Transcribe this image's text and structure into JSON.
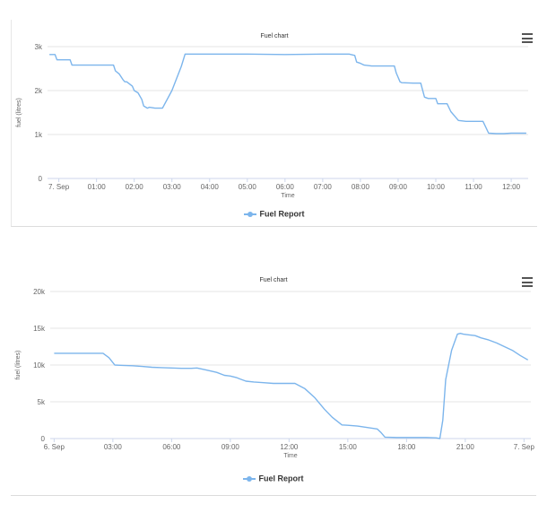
{
  "chart_data": [
    {
      "type": "line",
      "title": "Fuel chart",
      "xlabel": "Time",
      "ylabel": "fuel (litres)",
      "xlim": [
        -0.3,
        12.45
      ],
      "ylim": [
        0,
        3000
      ],
      "yticks": [
        0,
        1000,
        2000,
        3000
      ],
      "ytick_labels": [
        "0",
        "1k",
        "2k",
        "3k"
      ],
      "xticks": [
        0,
        1,
        2,
        3,
        4,
        5,
        6,
        7,
        8,
        9,
        10,
        11,
        12
      ],
      "xtick_labels": [
        "7. Sep",
        "01:00",
        "02:00",
        "03:00",
        "04:00",
        "05:00",
        "06:00",
        "07:00",
        "08:00",
        "09:00",
        "10:00",
        "11:00",
        "12:00"
      ],
      "grid": true,
      "legend": "bottom-center",
      "series": [
        {
          "name": "Fuel Report",
          "color": "#7cb5ec",
          "x": [
            -0.25,
            -0.1,
            -0.05,
            0.1,
            0.3,
            0.35,
            0.8,
            1.2,
            1.45,
            1.5,
            1.6,
            1.7,
            1.75,
            1.8,
            1.95,
            2.0,
            2.1,
            2.2,
            2.25,
            2.35,
            2.4,
            2.55,
            2.75,
            3.0,
            3.25,
            3.35,
            4.0,
            5.0,
            6.0,
            7.0,
            7.5,
            7.7,
            7.85,
            7.9,
            8.0,
            8.1,
            8.3,
            8.5,
            8.9,
            8.95,
            9.05,
            9.1,
            9.4,
            9.6,
            9.7,
            9.8,
            10.0,
            10.05,
            10.3,
            10.4,
            10.6,
            10.8,
            11.0,
            11.25,
            11.4,
            11.6,
            11.8,
            12.0,
            12.2,
            12.4
          ],
          "y": [
            2820,
            2820,
            2700,
            2700,
            2700,
            2580,
            2580,
            2580,
            2580,
            2450,
            2380,
            2250,
            2200,
            2200,
            2100,
            2000,
            1950,
            1800,
            1650,
            1600,
            1620,
            1600,
            1600,
            2000,
            2550,
            2830,
            2830,
            2830,
            2820,
            2830,
            2830,
            2830,
            2800,
            2650,
            2620,
            2580,
            2560,
            2560,
            2560,
            2400,
            2200,
            2180,
            2170,
            2170,
            1850,
            1820,
            1820,
            1700,
            1700,
            1520,
            1320,
            1300,
            1300,
            1300,
            1030,
            1020,
            1020,
            1030,
            1030,
            1030
          ]
        }
      ]
    },
    {
      "type": "line",
      "title": "Fuel chart",
      "xlabel": "Time",
      "ylabel": "fuel (litres)",
      "xlim": [
        -0.2,
        24.35
      ],
      "ylim": [
        0,
        20000
      ],
      "yticks": [
        0,
        5000,
        10000,
        15000,
        20000
      ],
      "ytick_labels": [
        "0",
        "5k",
        "10k",
        "15k",
        "20k"
      ],
      "xticks": [
        0,
        3,
        6,
        9,
        12,
        15,
        18,
        21,
        24
      ],
      "xtick_labels": [
        "6. Sep",
        "03:00",
        "06:00",
        "09:00",
        "12:00",
        "15:00",
        "18:00",
        "21:00",
        "7. Sep"
      ],
      "grid": true,
      "legend": "bottom-center",
      "series": [
        {
          "name": "Fuel Report",
          "color": "#7cb5ec",
          "x": [
            0.0,
            0.5,
            1.0,
            1.5,
            2.0,
            2.5,
            2.8,
            3.1,
            3.5,
            4.0,
            4.5,
            5.0,
            5.5,
            6.0,
            6.5,
            7.0,
            7.3,
            7.8,
            8.3,
            8.7,
            9.0,
            9.3,
            9.5,
            9.8,
            10.2,
            10.7,
            11.2,
            11.7,
            12.3,
            12.8,
            13.3,
            13.8,
            14.2,
            14.7,
            15.0,
            15.5,
            16.0,
            16.5,
            16.7,
            16.9,
            17.5,
            18.5,
            19.0,
            19.5,
            19.7,
            19.85,
            20.0,
            20.3,
            20.6,
            20.75,
            20.9,
            21.2,
            21.5,
            21.8,
            22.2,
            22.6,
            23.0,
            23.4,
            23.8,
            24.2
          ],
          "y": [
            11600,
            11600,
            11600,
            11600,
            11600,
            11600,
            11000,
            10000,
            9950,
            9900,
            9800,
            9700,
            9650,
            9600,
            9550,
            9550,
            9600,
            9300,
            9000,
            8600,
            8500,
            8300,
            8100,
            7800,
            7700,
            7600,
            7500,
            7500,
            7500,
            6800,
            5600,
            4000,
            2900,
            1850,
            1800,
            1700,
            1500,
            1300,
            800,
            200,
            150,
            150,
            150,
            100,
            0,
            2500,
            8000,
            12000,
            14200,
            14300,
            14200,
            14100,
            14000,
            13700,
            13400,
            13000,
            12500,
            12000,
            11300,
            10700
          ]
        }
      ]
    }
  ]
}
